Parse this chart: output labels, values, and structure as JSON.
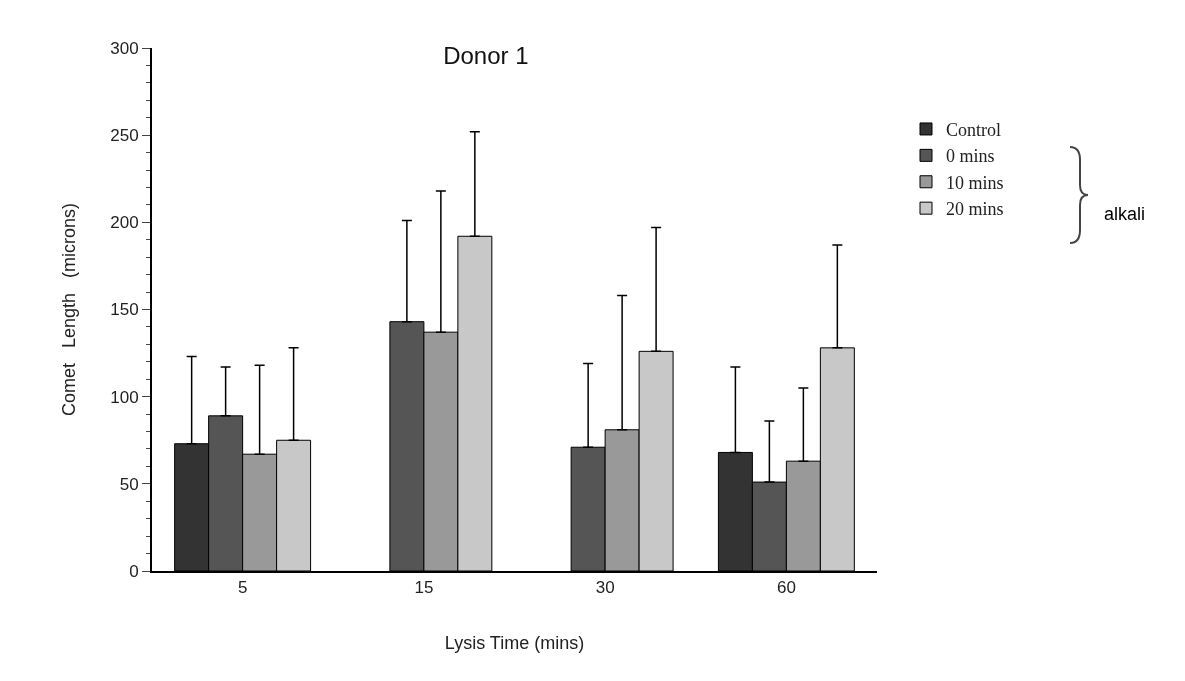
{
  "chart_data": {
    "type": "bar",
    "title": "Donor 1",
    "xlabel": "Lysis Time (mins)",
    "ylabel": "Comet   Length   (microns)",
    "categories": [
      "5",
      "15",
      "30",
      "60"
    ],
    "series": [
      {
        "name": "Control",
        "color": "#333333",
        "values": [
          73,
          null,
          null,
          68
        ],
        "errors": [
          [
            73,
            123
          ],
          null,
          null,
          [
            68,
            117
          ]
        ]
      },
      {
        "name": "0 mins",
        "color": "#555555",
        "values": [
          89,
          143,
          71,
          51
        ],
        "errors": [
          [
            89,
            117
          ],
          [
            143,
            201
          ],
          [
            71,
            119
          ],
          [
            51,
            86
          ]
        ]
      },
      {
        "name": "10 mins",
        "color": "#999999",
        "values": [
          67,
          137,
          81,
          63
        ],
        "errors": [
          [
            67,
            118
          ],
          [
            137,
            218
          ],
          [
            81,
            158
          ],
          [
            63,
            105
          ]
        ]
      },
      {
        "name": "20 mins",
        "color": "#c8c8c8",
        "values": [
          75,
          192,
          126,
          128
        ],
        "errors": [
          [
            75,
            128
          ],
          [
            192,
            252
          ],
          [
            126,
            197
          ],
          [
            128,
            187
          ]
        ]
      }
    ],
    "ylim": [
      0,
      300
    ],
    "yticks": [
      0,
      50,
      100,
      150,
      200,
      250,
      300
    ],
    "grid": false,
    "legend": "right",
    "annotations": [
      "alkali"
    ]
  }
}
